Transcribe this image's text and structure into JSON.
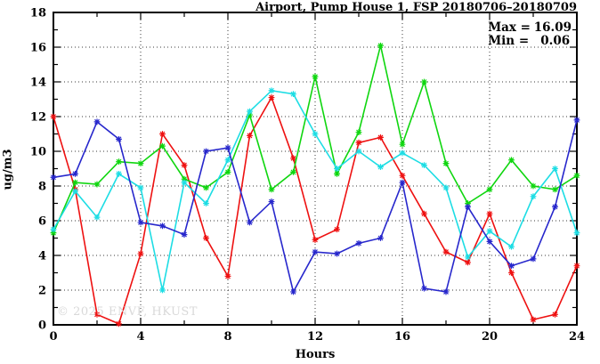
{
  "chart_data": {
    "type": "line",
    "title": "Airport, Pump House 1, FSP 20180706–20180709",
    "xlabel": "Hours",
    "ylabel": "ug/m3",
    "xlim": [
      0,
      24
    ],
    "ylim": [
      0,
      18
    ],
    "grid": true,
    "x_major_ticks": [
      0,
      4,
      8,
      12,
      16,
      20,
      24
    ],
    "x_minor_step": 2,
    "y_major_ticks": [
      0,
      2,
      4,
      6,
      8,
      10,
      12,
      14,
      16,
      18
    ],
    "y_minor_step": 1,
    "legend_position": "top-right-inside",
    "legend": {
      "max_label": "Max =",
      "max_value": "16.09",
      "min_label": "Min =",
      "min_value": "0.06"
    },
    "x": [
      0,
      1,
      2,
      3,
      4,
      5,
      6,
      7,
      8,
      9,
      10,
      11,
      12,
      13,
      14,
      15,
      16,
      17,
      18,
      19,
      20,
      21,
      22,
      23,
      24
    ],
    "series": [
      {
        "name": "red-series",
        "color": "#ee1111",
        "values": [
          12.0,
          7.8,
          0.6,
          0.06,
          4.1,
          11.0,
          9.2,
          5.0,
          2.8,
          10.9,
          13.1,
          9.6,
          4.9,
          5.5,
          10.5,
          10.8,
          8.6,
          6.4,
          4.2,
          3.6,
          6.4,
          3.0,
          0.3,
          0.6,
          3.4
        ]
      },
      {
        "name": "green-series",
        "color": "#0fd60f",
        "values": [
          5.3,
          8.2,
          8.1,
          9.4,
          9.3,
          10.3,
          8.4,
          7.9,
          8.8,
          12.1,
          7.8,
          8.8,
          14.3,
          8.7,
          11.1,
          16.09,
          10.4,
          14.0,
          9.3,
          7.0,
          7.8,
          9.5,
          8.0,
          7.8,
          8.6
        ]
      },
      {
        "name": "cyan-series",
        "color": "#1ddde4",
        "values": [
          5.5,
          7.7,
          6.2,
          8.7,
          7.9,
          2.0,
          8.2,
          7.0,
          9.5,
          12.3,
          13.5,
          13.3,
          11.0,
          9.0,
          10.0,
          9.1,
          9.9,
          9.2,
          7.9,
          3.9,
          5.4,
          4.5,
          7.4,
          9.0,
          5.3
        ]
      },
      {
        "name": "blue-series",
        "color": "#2727cc",
        "values": [
          8.5,
          8.7,
          11.7,
          10.7,
          5.9,
          5.7,
          5.2,
          10.0,
          10.2,
          5.9,
          7.1,
          1.9,
          4.2,
          4.1,
          4.7,
          5.0,
          8.2,
          2.1,
          1.9,
          6.8,
          4.8,
          3.4,
          3.8,
          6.8,
          11.8
        ]
      }
    ],
    "watermark": "© 2025 ENVF, HKUST",
    "frame_color": "#000000",
    "background_color": "#ffffff"
  }
}
